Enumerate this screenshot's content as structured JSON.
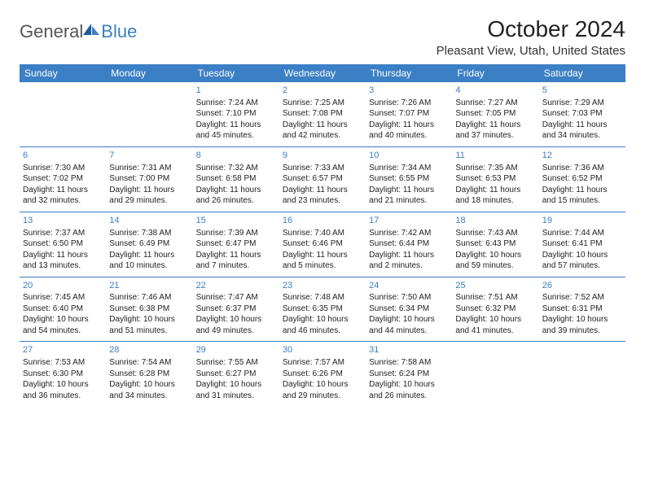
{
  "logo": {
    "general": "General",
    "blue": "Blue"
  },
  "title": "October 2024",
  "location": "Pleasant View, Utah, United States",
  "weekdays": [
    "Sunday",
    "Monday",
    "Tuesday",
    "Wednesday",
    "Thursday",
    "Friday",
    "Saturday"
  ],
  "header_bg": "#3b7fc4",
  "divider_color": "#3b7fc4",
  "daynum_color": "#3b7fc4",
  "weeks": [
    [
      null,
      null,
      {
        "n": "1",
        "sr": "7:24 AM",
        "ss": "7:10 PM",
        "dh": 11,
        "dm": 45
      },
      {
        "n": "2",
        "sr": "7:25 AM",
        "ss": "7:08 PM",
        "dh": 11,
        "dm": 42
      },
      {
        "n": "3",
        "sr": "7:26 AM",
        "ss": "7:07 PM",
        "dh": 11,
        "dm": 40
      },
      {
        "n": "4",
        "sr": "7:27 AM",
        "ss": "7:05 PM",
        "dh": 11,
        "dm": 37
      },
      {
        "n": "5",
        "sr": "7:29 AM",
        "ss": "7:03 PM",
        "dh": 11,
        "dm": 34
      }
    ],
    [
      {
        "n": "6",
        "sr": "7:30 AM",
        "ss": "7:02 PM",
        "dh": 11,
        "dm": 32
      },
      {
        "n": "7",
        "sr": "7:31 AM",
        "ss": "7:00 PM",
        "dh": 11,
        "dm": 29
      },
      {
        "n": "8",
        "sr": "7:32 AM",
        "ss": "6:58 PM",
        "dh": 11,
        "dm": 26
      },
      {
        "n": "9",
        "sr": "7:33 AM",
        "ss": "6:57 PM",
        "dh": 11,
        "dm": 23
      },
      {
        "n": "10",
        "sr": "7:34 AM",
        "ss": "6:55 PM",
        "dh": 11,
        "dm": 21
      },
      {
        "n": "11",
        "sr": "7:35 AM",
        "ss": "6:53 PM",
        "dh": 11,
        "dm": 18
      },
      {
        "n": "12",
        "sr": "7:36 AM",
        "ss": "6:52 PM",
        "dh": 11,
        "dm": 15
      }
    ],
    [
      {
        "n": "13",
        "sr": "7:37 AM",
        "ss": "6:50 PM",
        "dh": 11,
        "dm": 13
      },
      {
        "n": "14",
        "sr": "7:38 AM",
        "ss": "6:49 PM",
        "dh": 11,
        "dm": 10
      },
      {
        "n": "15",
        "sr": "7:39 AM",
        "ss": "6:47 PM",
        "dh": 11,
        "dm": 7
      },
      {
        "n": "16",
        "sr": "7:40 AM",
        "ss": "6:46 PM",
        "dh": 11,
        "dm": 5
      },
      {
        "n": "17",
        "sr": "7:42 AM",
        "ss": "6:44 PM",
        "dh": 11,
        "dm": 2
      },
      {
        "n": "18",
        "sr": "7:43 AM",
        "ss": "6:43 PM",
        "dh": 10,
        "dm": 59
      },
      {
        "n": "19",
        "sr": "7:44 AM",
        "ss": "6:41 PM",
        "dh": 10,
        "dm": 57
      }
    ],
    [
      {
        "n": "20",
        "sr": "7:45 AM",
        "ss": "6:40 PM",
        "dh": 10,
        "dm": 54
      },
      {
        "n": "21",
        "sr": "7:46 AM",
        "ss": "6:38 PM",
        "dh": 10,
        "dm": 51
      },
      {
        "n": "22",
        "sr": "7:47 AM",
        "ss": "6:37 PM",
        "dh": 10,
        "dm": 49
      },
      {
        "n": "23",
        "sr": "7:48 AM",
        "ss": "6:35 PM",
        "dh": 10,
        "dm": 46
      },
      {
        "n": "24",
        "sr": "7:50 AM",
        "ss": "6:34 PM",
        "dh": 10,
        "dm": 44
      },
      {
        "n": "25",
        "sr": "7:51 AM",
        "ss": "6:32 PM",
        "dh": 10,
        "dm": 41
      },
      {
        "n": "26",
        "sr": "7:52 AM",
        "ss": "6:31 PM",
        "dh": 10,
        "dm": 39
      }
    ],
    [
      {
        "n": "27",
        "sr": "7:53 AM",
        "ss": "6:30 PM",
        "dh": 10,
        "dm": 36
      },
      {
        "n": "28",
        "sr": "7:54 AM",
        "ss": "6:28 PM",
        "dh": 10,
        "dm": 34
      },
      {
        "n": "29",
        "sr": "7:55 AM",
        "ss": "6:27 PM",
        "dh": 10,
        "dm": 31
      },
      {
        "n": "30",
        "sr": "7:57 AM",
        "ss": "6:26 PM",
        "dh": 10,
        "dm": 29
      },
      {
        "n": "31",
        "sr": "7:58 AM",
        "ss": "6:24 PM",
        "dh": 10,
        "dm": 26
      },
      null,
      null
    ]
  ]
}
